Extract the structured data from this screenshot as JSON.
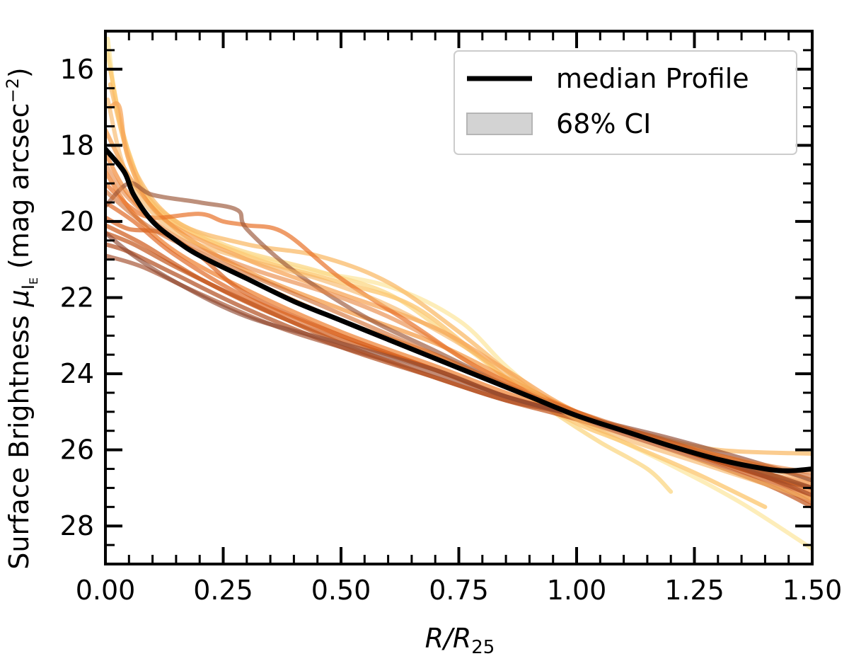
{
  "chart_data": {
    "type": "line",
    "xlabel": "R/R25",
    "xlabel_main": "R/R",
    "xlabel_sub": "25",
    "ylabel_prefix": "Surface Brightness ",
    "ylabel_symbol": "μ",
    "ylabel_sub": "I",
    "ylabel_subsub": "E",
    "ylabel_units": " (mag arcsec",
    "ylabel_exp": "−2",
    "ylabel_close": ")",
    "xlim": [
      0.0,
      1.5
    ],
    "ylim": [
      29.0,
      15.0
    ],
    "y_inverted": true,
    "xticks": [
      0.0,
      0.25,
      0.5,
      0.75,
      1.0,
      1.25,
      1.5
    ],
    "xtick_labels": [
      "0.00",
      "0.25",
      "0.50",
      "0.75",
      "1.00",
      "1.25",
      "1.50"
    ],
    "yticks": [
      16,
      18,
      20,
      22,
      24,
      26,
      28
    ],
    "ytick_labels": [
      "16",
      "18",
      "20",
      "22",
      "24",
      "26",
      "28"
    ],
    "legend": {
      "position": "top-right",
      "entries": [
        {
          "label": "median Profile",
          "style": "line",
          "color": "#000000"
        },
        {
          "label": "68% CI",
          "style": "patch",
          "color": "#d3d3d3"
        }
      ]
    },
    "median_profile": {
      "name": "median Profile",
      "color": "#000000",
      "points": [
        [
          0.0,
          18.1
        ],
        [
          0.04,
          18.7
        ],
        [
          0.06,
          19.3
        ],
        [
          0.1,
          20.0
        ],
        [
          0.15,
          20.5
        ],
        [
          0.2,
          20.9
        ],
        [
          0.3,
          21.5
        ],
        [
          0.4,
          22.1
        ],
        [
          0.5,
          22.6
        ],
        [
          0.6,
          23.1
        ],
        [
          0.7,
          23.6
        ],
        [
          0.8,
          24.1
        ],
        [
          0.9,
          24.6
        ],
        [
          1.0,
          25.1
        ],
        [
          1.1,
          25.5
        ],
        [
          1.2,
          25.9
        ],
        [
          1.3,
          26.25
        ],
        [
          1.4,
          26.5
        ],
        [
          1.45,
          26.55
        ],
        [
          1.5,
          26.5
        ]
      ]
    },
    "individual_profiles": [
      {
        "color": "#fde9a8",
        "alpha": 0.8,
        "points": [
          [
            0.005,
            15.2
          ],
          [
            0.03,
            17.4
          ],
          [
            0.08,
            19.2
          ],
          [
            0.2,
            20.4
          ],
          [
            0.4,
            21.2
          ],
          [
            0.6,
            21.7
          ],
          [
            0.75,
            22.6
          ],
          [
            0.85,
            23.8
          ],
          [
            0.95,
            24.8
          ],
          [
            1.05,
            25.5
          ],
          [
            1.2,
            26.4
          ],
          [
            1.35,
            27.4
          ],
          [
            1.5,
            28.6
          ]
        ]
      },
      {
        "color": "#fbd98c",
        "alpha": 0.8,
        "points": [
          [
            0.005,
            15.6
          ],
          [
            0.04,
            17.8
          ],
          [
            0.1,
            19.5
          ],
          [
            0.25,
            20.6
          ],
          [
            0.45,
            21.3
          ],
          [
            0.6,
            21.9
          ],
          [
            0.72,
            22.9
          ],
          [
            0.85,
            24.1
          ],
          [
            0.95,
            25.0
          ],
          [
            1.05,
            25.8
          ],
          [
            1.15,
            26.5
          ],
          [
            1.2,
            27.1
          ]
        ]
      },
      {
        "color": "#fcc976",
        "alpha": 0.8,
        "points": [
          [
            0.01,
            16.0
          ],
          [
            0.05,
            18.2
          ],
          [
            0.12,
            19.8
          ],
          [
            0.3,
            20.9
          ],
          [
            0.5,
            21.6
          ],
          [
            0.65,
            22.2
          ],
          [
            0.78,
            23.4
          ],
          [
            0.9,
            24.6
          ],
          [
            1.0,
            25.3
          ],
          [
            1.1,
            25.8
          ],
          [
            1.25,
            26.6
          ],
          [
            1.4,
            27.5
          ]
        ]
      },
      {
        "color": "#fabb6a",
        "alpha": 0.75,
        "points": [
          [
            0.01,
            16.4
          ],
          [
            0.06,
            18.6
          ],
          [
            0.15,
            20.0
          ],
          [
            0.3,
            20.6
          ],
          [
            0.45,
            20.9
          ],
          [
            0.6,
            21.6
          ],
          [
            0.75,
            22.9
          ],
          [
            0.9,
            24.4
          ],
          [
            1.0,
            25.1
          ],
          [
            1.15,
            25.6
          ],
          [
            1.3,
            26.0
          ],
          [
            1.5,
            26.1
          ]
        ]
      },
      {
        "color": "#f7a65a",
        "alpha": 0.75,
        "points": [
          [
            0.01,
            17.0
          ],
          [
            0.03,
            17.0
          ],
          [
            0.05,
            18.4
          ],
          [
            0.12,
            19.9
          ],
          [
            0.3,
            21.0
          ],
          [
            0.5,
            21.9
          ],
          [
            0.7,
            22.8
          ],
          [
            0.85,
            23.9
          ],
          [
            1.0,
            25.0
          ],
          [
            1.2,
            25.8
          ],
          [
            1.35,
            26.3
          ],
          [
            1.5,
            26.8
          ]
        ]
      },
      {
        "color": "#f4973f",
        "alpha": 0.7,
        "points": [
          [
            0.0,
            17.6
          ],
          [
            0.06,
            19.0
          ],
          [
            0.15,
            20.2
          ],
          [
            0.3,
            21.3
          ],
          [
            0.5,
            22.3
          ],
          [
            0.7,
            23.2
          ],
          [
            0.85,
            24.1
          ],
          [
            1.0,
            25.0
          ],
          [
            1.2,
            25.9
          ],
          [
            1.35,
            26.5
          ],
          [
            1.5,
            27.0
          ]
        ]
      },
      {
        "color": "#f28a37",
        "alpha": 0.7,
        "points": [
          [
            0.0,
            18.2
          ],
          [
            0.05,
            19.3
          ],
          [
            0.15,
            20.5
          ],
          [
            0.3,
            21.5
          ],
          [
            0.5,
            22.6
          ],
          [
            0.7,
            23.5
          ],
          [
            0.85,
            24.3
          ],
          [
            1.0,
            25.0
          ],
          [
            1.2,
            25.9
          ],
          [
            1.4,
            26.6
          ],
          [
            1.5,
            26.9
          ]
        ]
      },
      {
        "color": "#ee7d2c",
        "alpha": 0.7,
        "points": [
          [
            0.0,
            18.7
          ],
          [
            0.06,
            19.8
          ],
          [
            0.15,
            20.8
          ],
          [
            0.3,
            21.8
          ],
          [
            0.5,
            22.9
          ],
          [
            0.7,
            23.8
          ],
          [
            0.85,
            24.5
          ],
          [
            1.0,
            25.1
          ],
          [
            1.2,
            25.9
          ],
          [
            1.4,
            26.6
          ],
          [
            1.5,
            27.1
          ]
        ]
      },
      {
        "color": "#e8722a",
        "alpha": 0.7,
        "points": [
          [
            0.0,
            19.0
          ],
          [
            0.05,
            19.6
          ],
          [
            0.1,
            19.9
          ],
          [
            0.2,
            19.8
          ],
          [
            0.25,
            20.0
          ],
          [
            0.3,
            20.1
          ],
          [
            0.38,
            20.3
          ],
          [
            0.5,
            21.5
          ],
          [
            0.65,
            22.7
          ],
          [
            0.8,
            23.9
          ],
          [
            1.0,
            25.0
          ],
          [
            1.2,
            25.9
          ],
          [
            1.4,
            26.7
          ],
          [
            1.5,
            27.2
          ]
        ]
      },
      {
        "color": "#e06a27",
        "alpha": 0.7,
        "points": [
          [
            0.0,
            19.5
          ],
          [
            0.06,
            20.0
          ],
          [
            0.15,
            20.9
          ],
          [
            0.3,
            22.0
          ],
          [
            0.5,
            23.0
          ],
          [
            0.7,
            23.9
          ],
          [
            0.85,
            24.6
          ],
          [
            1.0,
            25.1
          ],
          [
            1.2,
            25.9
          ],
          [
            1.4,
            26.7
          ],
          [
            1.5,
            27.3
          ]
        ]
      },
      {
        "color": "#d8621f",
        "alpha": 0.7,
        "points": [
          [
            0.0,
            19.9
          ],
          [
            0.05,
            20.2
          ],
          [
            0.12,
            20.3
          ],
          [
            0.2,
            20.9
          ],
          [
            0.3,
            21.9
          ],
          [
            0.5,
            23.0
          ],
          [
            0.7,
            23.9
          ],
          [
            0.85,
            24.6
          ],
          [
            1.0,
            25.1
          ],
          [
            1.2,
            25.8
          ],
          [
            1.4,
            26.6
          ],
          [
            1.5,
            27.0
          ]
        ]
      },
      {
        "color": "#cf5a1a",
        "alpha": 0.7,
        "points": [
          [
            0.0,
            20.1
          ],
          [
            0.08,
            20.6
          ],
          [
            0.2,
            21.5
          ],
          [
            0.35,
            22.4
          ],
          [
            0.5,
            23.1
          ],
          [
            0.7,
            23.9
          ],
          [
            0.85,
            24.6
          ],
          [
            1.0,
            25.1
          ],
          [
            1.2,
            25.9
          ],
          [
            1.4,
            26.8
          ],
          [
            1.5,
            27.4
          ]
        ]
      },
      {
        "color": "#c2541a",
        "alpha": 0.7,
        "points": [
          [
            0.0,
            20.3
          ],
          [
            0.06,
            20.6
          ],
          [
            0.15,
            21.2
          ],
          [
            0.3,
            22.1
          ],
          [
            0.5,
            23.2
          ],
          [
            0.7,
            24.1
          ],
          [
            0.85,
            24.7
          ],
          [
            1.0,
            25.2
          ],
          [
            1.2,
            26.0
          ],
          [
            1.4,
            26.9
          ],
          [
            1.5,
            27.5
          ]
        ]
      },
      {
        "color": "#b14d1f",
        "alpha": 0.7,
        "points": [
          [
            0.0,
            20.6
          ],
          [
            0.05,
            20.8
          ],
          [
            0.15,
            21.4
          ],
          [
            0.3,
            22.3
          ],
          [
            0.5,
            23.3
          ],
          [
            0.7,
            24.1
          ],
          [
            0.85,
            24.7
          ],
          [
            1.0,
            25.1
          ],
          [
            1.2,
            25.9
          ],
          [
            1.4,
            26.7
          ],
          [
            1.5,
            27.0
          ]
        ]
      },
      {
        "color": "#a24c2a",
        "alpha": 0.65,
        "points": [
          [
            0.0,
            20.9
          ],
          [
            0.08,
            21.2
          ],
          [
            0.2,
            21.9
          ],
          [
            0.35,
            22.7
          ],
          [
            0.5,
            23.3
          ],
          [
            0.7,
            24.0
          ],
          [
            0.85,
            24.6
          ],
          [
            1.0,
            25.1
          ],
          [
            1.2,
            25.8
          ],
          [
            1.4,
            26.7
          ],
          [
            1.5,
            27.2
          ]
        ]
      },
      {
        "color": "#8f4a33",
        "alpha": 0.65,
        "points": [
          [
            0.0,
            20.3
          ],
          [
            0.06,
            20.9
          ],
          [
            0.15,
            21.6
          ],
          [
            0.3,
            22.5
          ],
          [
            0.5,
            23.2
          ],
          [
            0.7,
            23.9
          ],
          [
            0.85,
            24.6
          ],
          [
            1.0,
            25.1
          ],
          [
            1.2,
            25.7
          ],
          [
            1.4,
            26.4
          ],
          [
            1.5,
            26.8
          ]
        ]
      },
      {
        "color": "#9a5436",
        "alpha": 0.65,
        "points": [
          [
            0.0,
            19.6
          ],
          [
            0.05,
            19.0
          ],
          [
            0.1,
            19.3
          ],
          [
            0.2,
            19.5
          ],
          [
            0.28,
            19.7
          ],
          [
            0.3,
            20.2
          ],
          [
            0.4,
            21.3
          ],
          [
            0.55,
            22.5
          ],
          [
            0.7,
            23.4
          ],
          [
            0.85,
            24.3
          ],
          [
            1.0,
            25.1
          ],
          [
            1.2,
            25.9
          ],
          [
            1.4,
            26.6
          ],
          [
            1.5,
            27.0
          ]
        ]
      },
      {
        "color": "#e8823a",
        "alpha": 0.6,
        "points": [
          [
            0.0,
            18.5
          ],
          [
            0.05,
            19.4
          ],
          [
            0.15,
            20.4
          ],
          [
            0.3,
            21.2
          ],
          [
            0.5,
            22.0
          ],
          [
            0.65,
            22.8
          ],
          [
            0.8,
            23.9
          ],
          [
            0.95,
            24.8
          ],
          [
            1.1,
            25.5
          ],
          [
            1.25,
            26.0
          ],
          [
            1.4,
            26.4
          ],
          [
            1.5,
            26.6
          ]
        ]
      },
      {
        "color": "#f6b35f",
        "alpha": 0.6,
        "points": [
          [
            0.005,
            16.8
          ],
          [
            0.05,
            18.9
          ],
          [
            0.15,
            20.3
          ],
          [
            0.3,
            21.0
          ],
          [
            0.45,
            21.5
          ],
          [
            0.6,
            22.2
          ],
          [
            0.75,
            23.2
          ],
          [
            0.9,
            24.4
          ],
          [
            1.0,
            25.2
          ],
          [
            1.1,
            25.7
          ],
          [
            1.25,
            26.3
          ],
          [
            1.4,
            26.9
          ],
          [
            1.5,
            27.3
          ]
        ]
      },
      {
        "color": "#d0692a",
        "alpha": 0.6,
        "points": [
          [
            0.0,
            19.2
          ],
          [
            0.1,
            20.2
          ],
          [
            0.25,
            21.1
          ],
          [
            0.4,
            21.9
          ],
          [
            0.55,
            22.7
          ],
          [
            0.7,
            23.5
          ],
          [
            0.85,
            24.3
          ],
          [
            1.0,
            25.0
          ],
          [
            1.2,
            25.8
          ],
          [
            1.35,
            26.3
          ],
          [
            1.5,
            26.7
          ]
        ]
      }
    ]
  }
}
